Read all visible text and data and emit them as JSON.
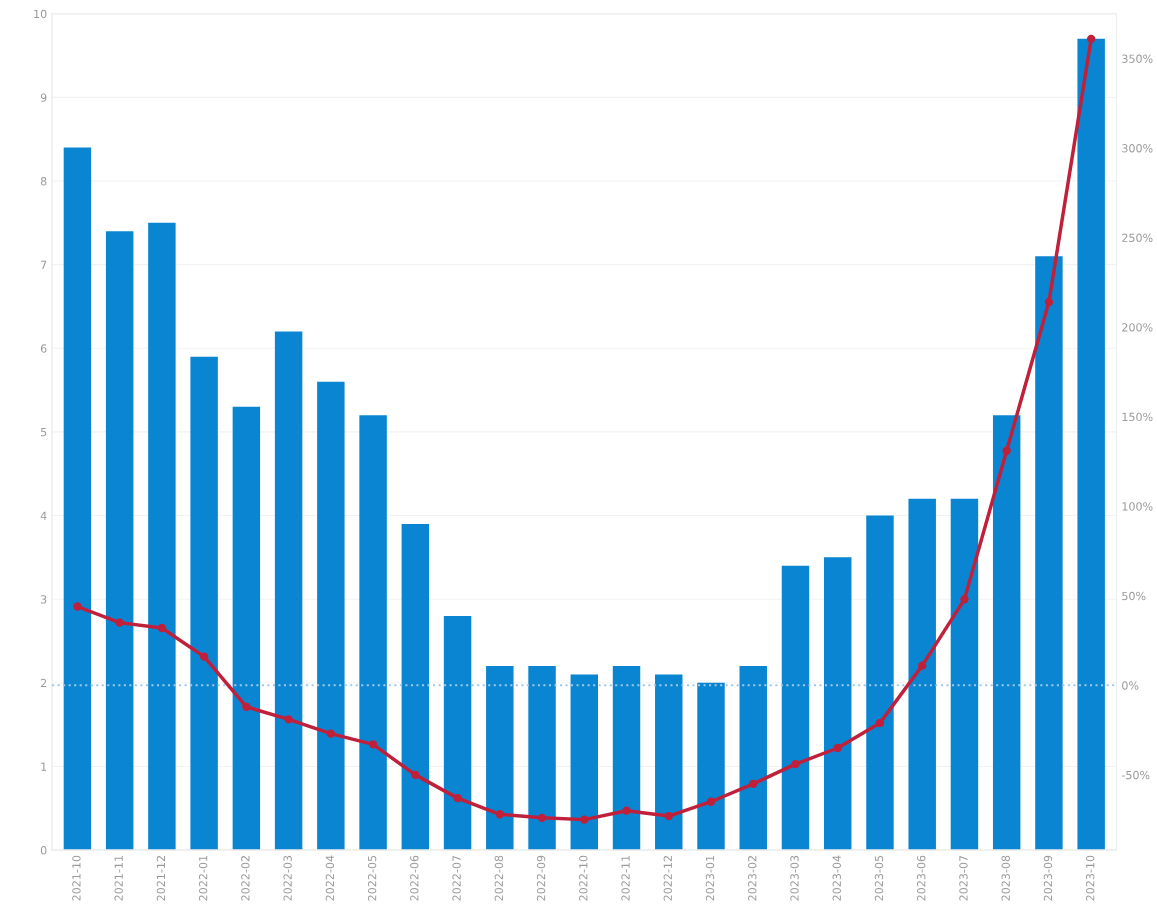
{
  "chart_data": {
    "type": "bar",
    "categories": [
      "2021-10",
      "2021-11",
      "2021-12",
      "2022-01",
      "2022-02",
      "2022-03",
      "2022-04",
      "2022-05",
      "2022-06",
      "2022-07",
      "2022-08",
      "2022-09",
      "2022-10",
      "2022-11",
      "2022-12",
      "2023-01",
      "2023-02",
      "2023-03",
      "2023-04",
      "2023-05",
      "2023-06",
      "2023-07",
      "2023-08",
      "2023-09",
      "2023-10"
    ],
    "series": [
      {
        "color": "#0a85d1",
        "values": [
          8.4,
          7.4,
          7.5,
          5.9,
          5.3,
          6.2,
          5.6,
          5.2,
          3.9,
          2.8,
          2.2,
          2.2,
          2.1,
          2.2,
          2.1,
          2.0,
          2.2,
          3.4,
          3.5,
          4.0,
          4.2,
          4.2,
          5.2,
          7.1,
          9.7
        ]
      },
      {
        "type": "line",
        "axis": "y2",
        "color": "#c0203a",
        "marker": "circle",
        "values": [
          44,
          35,
          32,
          16,
          -12,
          -19,
          -27,
          -33,
          -50,
          -63,
          -72,
          -74,
          -75,
          -70,
          -73,
          -65,
          -55,
          -44,
          -35,
          -21,
          11,
          48,
          131,
          214,
          361
        ]
      }
    ],
    "ylim": [
      0,
      10
    ],
    "yticks": [
      0,
      1,
      2,
      3,
      4,
      5,
      6,
      7,
      8,
      9,
      10
    ],
    "y2lim": [
      -92,
      375
    ],
    "y2ticks": [
      {
        "value": -50,
        "label": "-50%"
      },
      {
        "value": 0,
        "label": "0%"
      },
      {
        "value": 50,
        "label": "50%"
      },
      {
        "value": 100,
        "label": "100%"
      },
      {
        "value": 150,
        "label": "150%"
      },
      {
        "value": 200,
        "label": "200%"
      },
      {
        "value": 250,
        "label": "250%"
      },
      {
        "value": 300,
        "label": "300%"
      },
      {
        "value": 350,
        "label": "350%"
      }
    ],
    "ref_lines": [
      {
        "axis": "y2",
        "value": 0,
        "color": "#9fc8e8",
        "line_style": "dotted"
      }
    ],
    "grid": "y",
    "legend": false
  }
}
